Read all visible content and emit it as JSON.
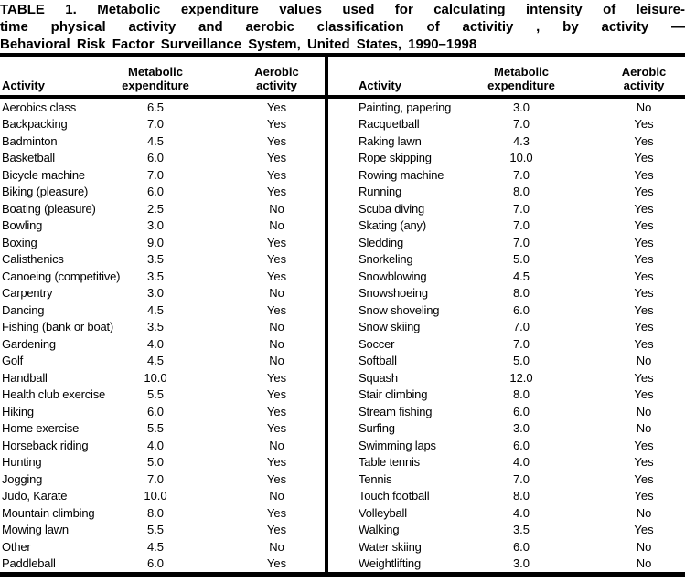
{
  "title": {
    "line1": "TABLE 1. Metabolic expenditure values used for calculating intensity of leisure-",
    "line2": "time physical activity and aerobic classification of activitiy , by activity —",
    "line3": "Behavioral Risk Factor Surveillance System, United States, 1990–1998"
  },
  "headers": {
    "activity": "Activity",
    "metabolic_line1": "Metabolic",
    "metabolic_line2": "expenditure",
    "aerobic_line1": "Aerobic",
    "aerobic_line2": "activity"
  },
  "chart_data": {
    "type": "table",
    "title": "TABLE 1. Metabolic expenditure values used for calculating intensity of leisure-time physical activity and aerobic classification of activitiy , by activity — Behavioral Risk Factor Surveillance System, United States, 1990–1998",
    "columns": [
      "Activity",
      "Metabolic expenditure",
      "Aerobic activity"
    ]
  },
  "table": {
    "left_rows": [
      {
        "activity": "Aerobics class",
        "met": "6.5",
        "aerobic": "Yes"
      },
      {
        "activity": "Backpacking",
        "met": "7.0",
        "aerobic": "Yes"
      },
      {
        "activity": "Badminton",
        "met": "4.5",
        "aerobic": "Yes"
      },
      {
        "activity": "Basketball",
        "met": "6.0",
        "aerobic": "Yes"
      },
      {
        "activity": "Bicycle machine",
        "met": "7.0",
        "aerobic": "Yes"
      },
      {
        "activity": "Biking (pleasure)",
        "met": "6.0",
        "aerobic": "Yes"
      },
      {
        "activity": "Boating (pleasure)",
        "met": "2.5",
        "aerobic": "No"
      },
      {
        "activity": "Bowling",
        "met": "3.0",
        "aerobic": "No"
      },
      {
        "activity": "Boxing",
        "met": "9.0",
        "aerobic": "Yes"
      },
      {
        "activity": "Calisthenics",
        "met": "3.5",
        "aerobic": "Yes"
      },
      {
        "activity": "Canoeing (competitive)",
        "met": "3.5",
        "aerobic": "Yes"
      },
      {
        "activity": "Carpentry",
        "met": "3.0",
        "aerobic": "No"
      },
      {
        "activity": "Dancing",
        "met": "4.5",
        "aerobic": "Yes"
      },
      {
        "activity": "Fishing (bank or boat)",
        "met": "3.5",
        "aerobic": "No"
      },
      {
        "activity": "Gardening",
        "met": "4.0",
        "aerobic": "No"
      },
      {
        "activity": "Golf",
        "met": "4.5",
        "aerobic": "No"
      },
      {
        "activity": "Handball",
        "met": "10.0",
        "aerobic": "Yes"
      },
      {
        "activity": "Health club exercise",
        "met": "5.5",
        "aerobic": "Yes"
      },
      {
        "activity": "Hiking",
        "met": "6.0",
        "aerobic": "Yes"
      },
      {
        "activity": "Home exercise",
        "met": "5.5",
        "aerobic": "Yes"
      },
      {
        "activity": "Horseback riding",
        "met": "4.0",
        "aerobic": "No"
      },
      {
        "activity": "Hunting",
        "met": "5.0",
        "aerobic": "Yes"
      },
      {
        "activity": "Jogging",
        "met": "7.0",
        "aerobic": "Yes"
      },
      {
        "activity": "Judo, Karate",
        "met": "10.0",
        "aerobic": "No"
      },
      {
        "activity": "Mountain climbing",
        "met": "8.0",
        "aerobic": "Yes"
      },
      {
        "activity": "Mowing lawn",
        "met": "5.5",
        "aerobic": "Yes"
      },
      {
        "activity": "Other",
        "met": "4.5",
        "aerobic": "No"
      },
      {
        "activity": "Paddleball",
        "met": "6.0",
        "aerobic": "Yes"
      }
    ],
    "right_rows": [
      {
        "activity": "Painting, papering",
        "met": "3.0",
        "aerobic": "No"
      },
      {
        "activity": "Racquetball",
        "met": "7.0",
        "aerobic": "Yes"
      },
      {
        "activity": "Raking lawn",
        "met": "4.3",
        "aerobic": "Yes"
      },
      {
        "activity": "Rope skipping",
        "met": "10.0",
        "aerobic": "Yes"
      },
      {
        "activity": "Rowing machine",
        "met": "7.0",
        "aerobic": "Yes"
      },
      {
        "activity": "Running",
        "met": "8.0",
        "aerobic": "Yes"
      },
      {
        "activity": "Scuba diving",
        "met": "7.0",
        "aerobic": "Yes"
      },
      {
        "activity": "Skating (any)",
        "met": "7.0",
        "aerobic": "Yes"
      },
      {
        "activity": "Sledding",
        "met": "7.0",
        "aerobic": "Yes"
      },
      {
        "activity": "Snorkeling",
        "met": "5.0",
        "aerobic": "Yes"
      },
      {
        "activity": "Snowblowing",
        "met": "4.5",
        "aerobic": "Yes"
      },
      {
        "activity": "Snowshoeing",
        "met": "8.0",
        "aerobic": "Yes"
      },
      {
        "activity": "Snow shoveling",
        "met": "6.0",
        "aerobic": "Yes"
      },
      {
        "activity": "Snow skiing",
        "met": "7.0",
        "aerobic": "Yes"
      },
      {
        "activity": "Soccer",
        "met": "7.0",
        "aerobic": "Yes"
      },
      {
        "activity": "Softball",
        "met": "5.0",
        "aerobic": "No"
      },
      {
        "activity": "Squash",
        "met": "12.0",
        "aerobic": "Yes"
      },
      {
        "activity": "Stair climbing",
        "met": "8.0",
        "aerobic": "Yes"
      },
      {
        "activity": "Stream fishing",
        "met": "6.0",
        "aerobic": "No"
      },
      {
        "activity": "Surfing",
        "met": "3.0",
        "aerobic": "No"
      },
      {
        "activity": "Swimming laps",
        "met": "6.0",
        "aerobic": "Yes"
      },
      {
        "activity": "Table tennis",
        "met": "4.0",
        "aerobic": "Yes"
      },
      {
        "activity": "Tennis",
        "met": "7.0",
        "aerobic": "Yes"
      },
      {
        "activity": "Touch football",
        "met": "8.0",
        "aerobic": "Yes"
      },
      {
        "activity": "Volleyball",
        "met": "4.0",
        "aerobic": "No"
      },
      {
        "activity": "Walking",
        "met": "3.5",
        "aerobic": "Yes"
      },
      {
        "activity": "Water skiing",
        "met": "6.0",
        "aerobic": "No"
      },
      {
        "activity": "Weightlifting",
        "met": "3.0",
        "aerobic": "No"
      }
    ]
  }
}
